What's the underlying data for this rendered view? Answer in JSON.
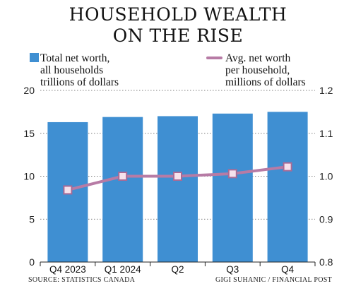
{
  "title": {
    "line1": "HOUSEHOLD WEALTH",
    "line2": "ON THE RISE"
  },
  "legend": {
    "bars": [
      "Total net worth,",
      "all households",
      "trillions of dollars"
    ],
    "line": [
      "Avg. net worth",
      "per household,",
      "millions of dollars"
    ]
  },
  "footer": {
    "source": "SOURCE: STATISTICS CANADA",
    "credit": "GIGI SUHANIC / FINANCIAL POST"
  },
  "colors": {
    "bar": "#3f8fd2",
    "line": "#b77ba5",
    "marker_fill": "#f6e1ec",
    "marker_stroke": "#a86b96",
    "grid": "#555555"
  },
  "chart_data": {
    "type": "bar+line",
    "categories": [
      "Q4 2023",
      "Q1 2024",
      "Q2",
      "Q3",
      "Q4"
    ],
    "series": [
      {
        "name": "Total net worth, all households trillions of dollars",
        "type": "bar",
        "axis": "left",
        "values": [
          16.3,
          16.9,
          17.0,
          17.3,
          17.5
        ]
      },
      {
        "name": "Avg. net worth per household, millions of dollars",
        "type": "line",
        "axis": "right",
        "values": [
          0.968,
          1.0,
          1.0,
          1.006,
          1.022
        ]
      }
    ],
    "y_left": {
      "ylim": [
        0,
        20
      ],
      "ticks": [
        "0",
        "5",
        "10",
        "15",
        "20"
      ]
    },
    "y_right": {
      "ylim": [
        0.8,
        1.2
      ],
      "ticks": [
        "0.8",
        "0.9",
        "1.0",
        "1.1",
        "1.2"
      ]
    },
    "grid": true,
    "legend_position": "top"
  }
}
